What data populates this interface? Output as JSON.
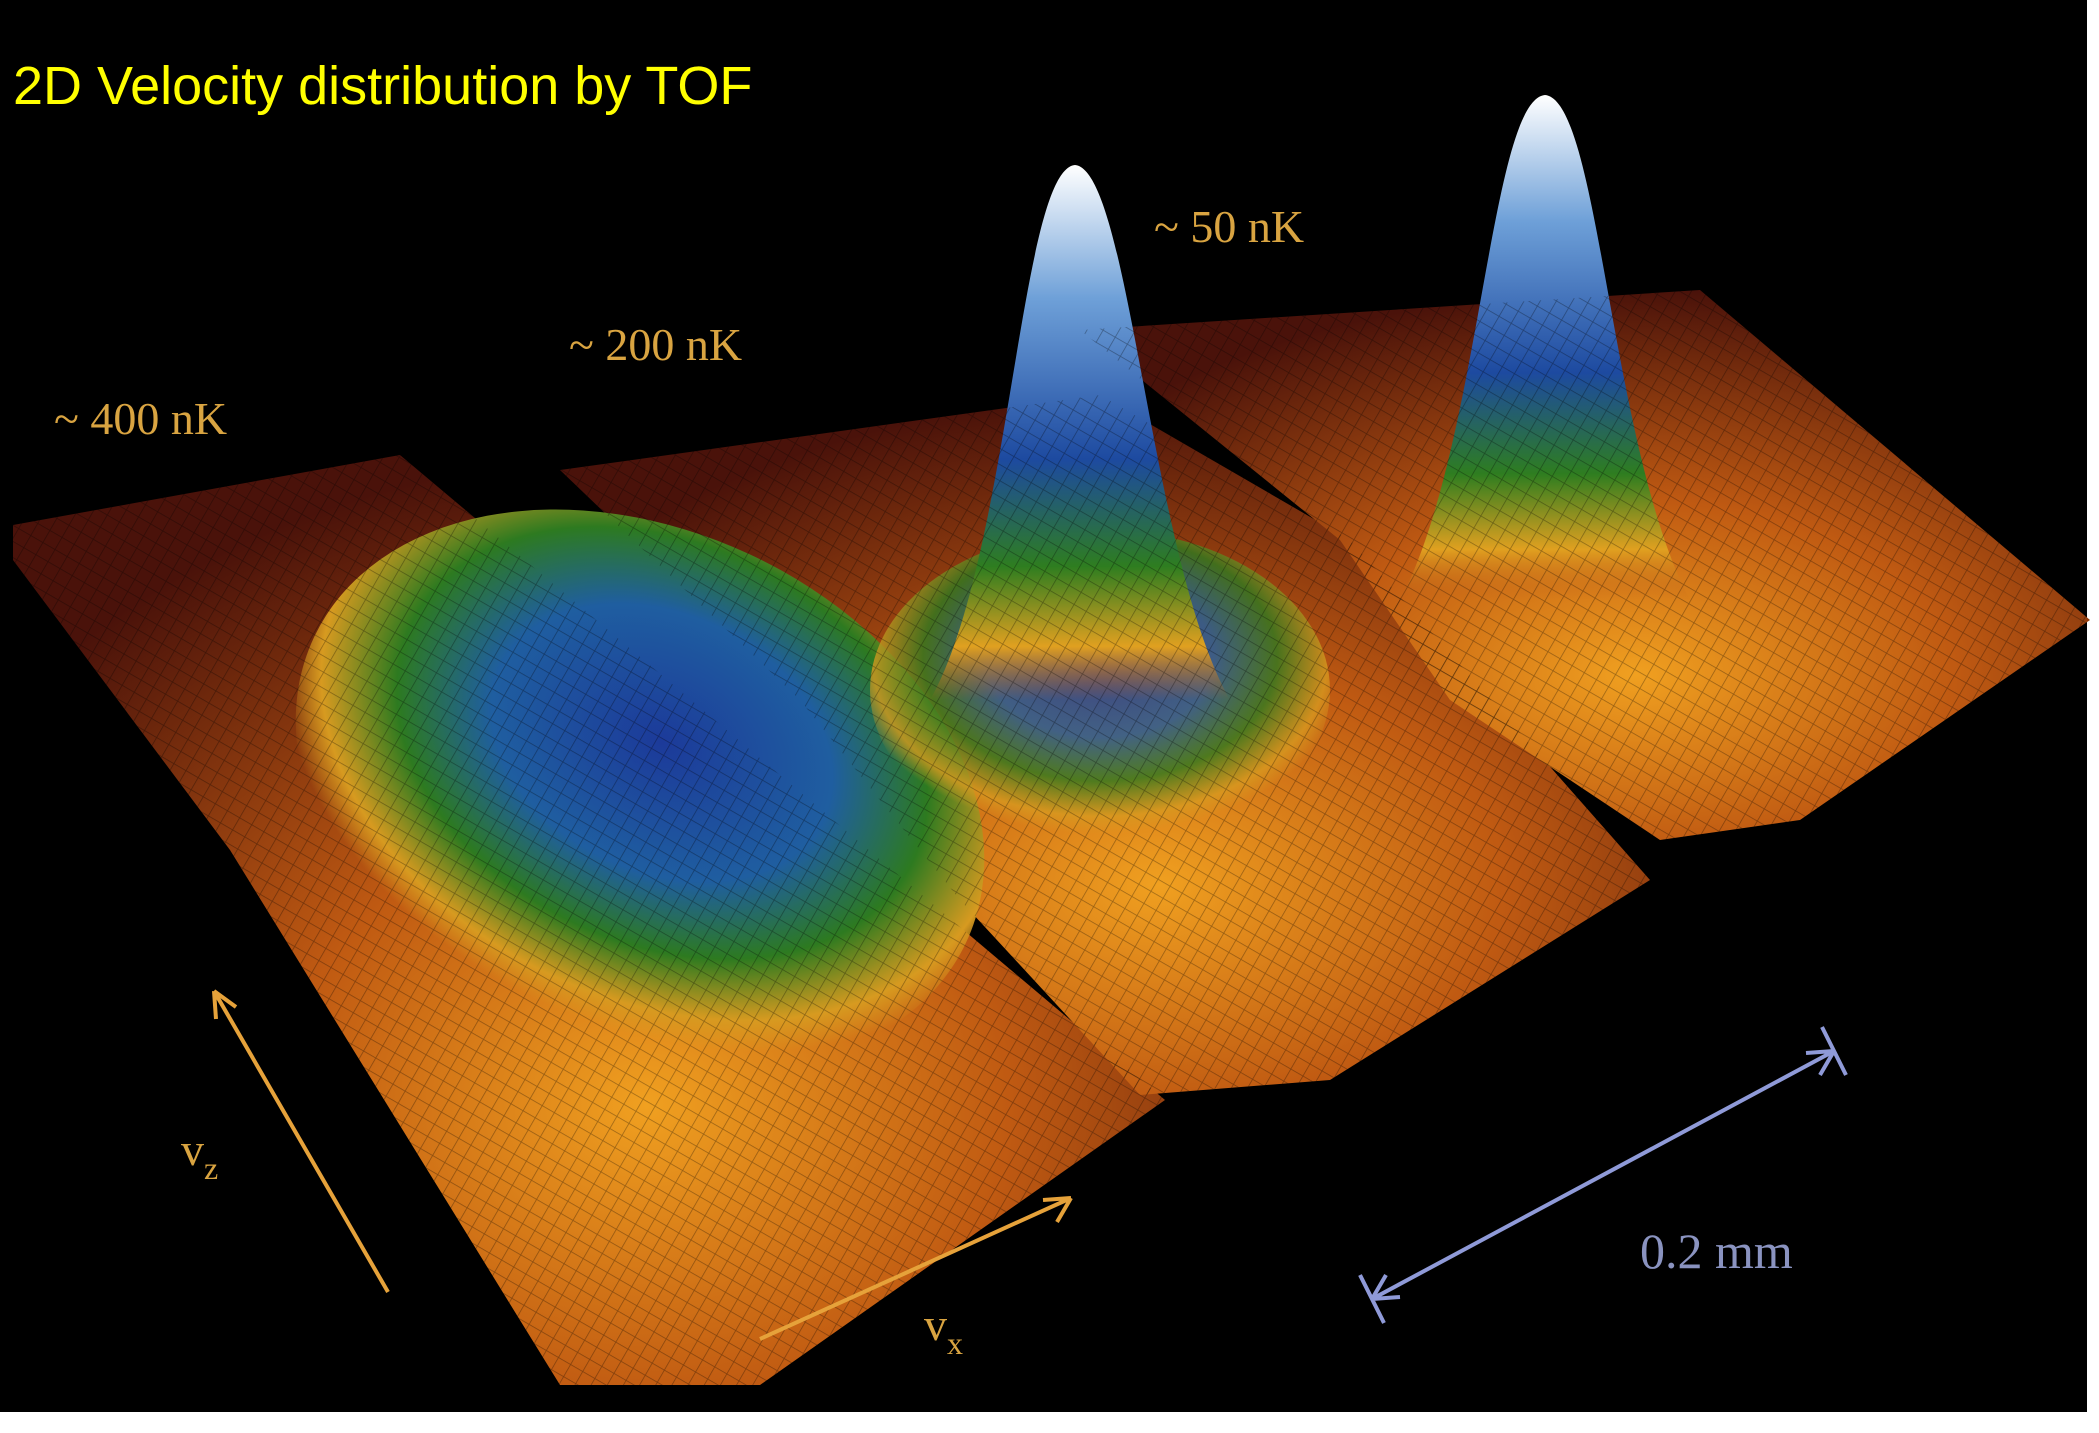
{
  "title": "2D Velocity distribution by TOF",
  "labels": {
    "temp_400": "~ 400 nK",
    "temp_200": "~ 200 nK",
    "temp_50": "~ 50 nK",
    "scale": "0.2 mm"
  },
  "axes": {
    "vz": {
      "symbol": "v",
      "subscript": "z"
    },
    "vx": {
      "symbol": "v",
      "subscript": "x"
    }
  }
}
